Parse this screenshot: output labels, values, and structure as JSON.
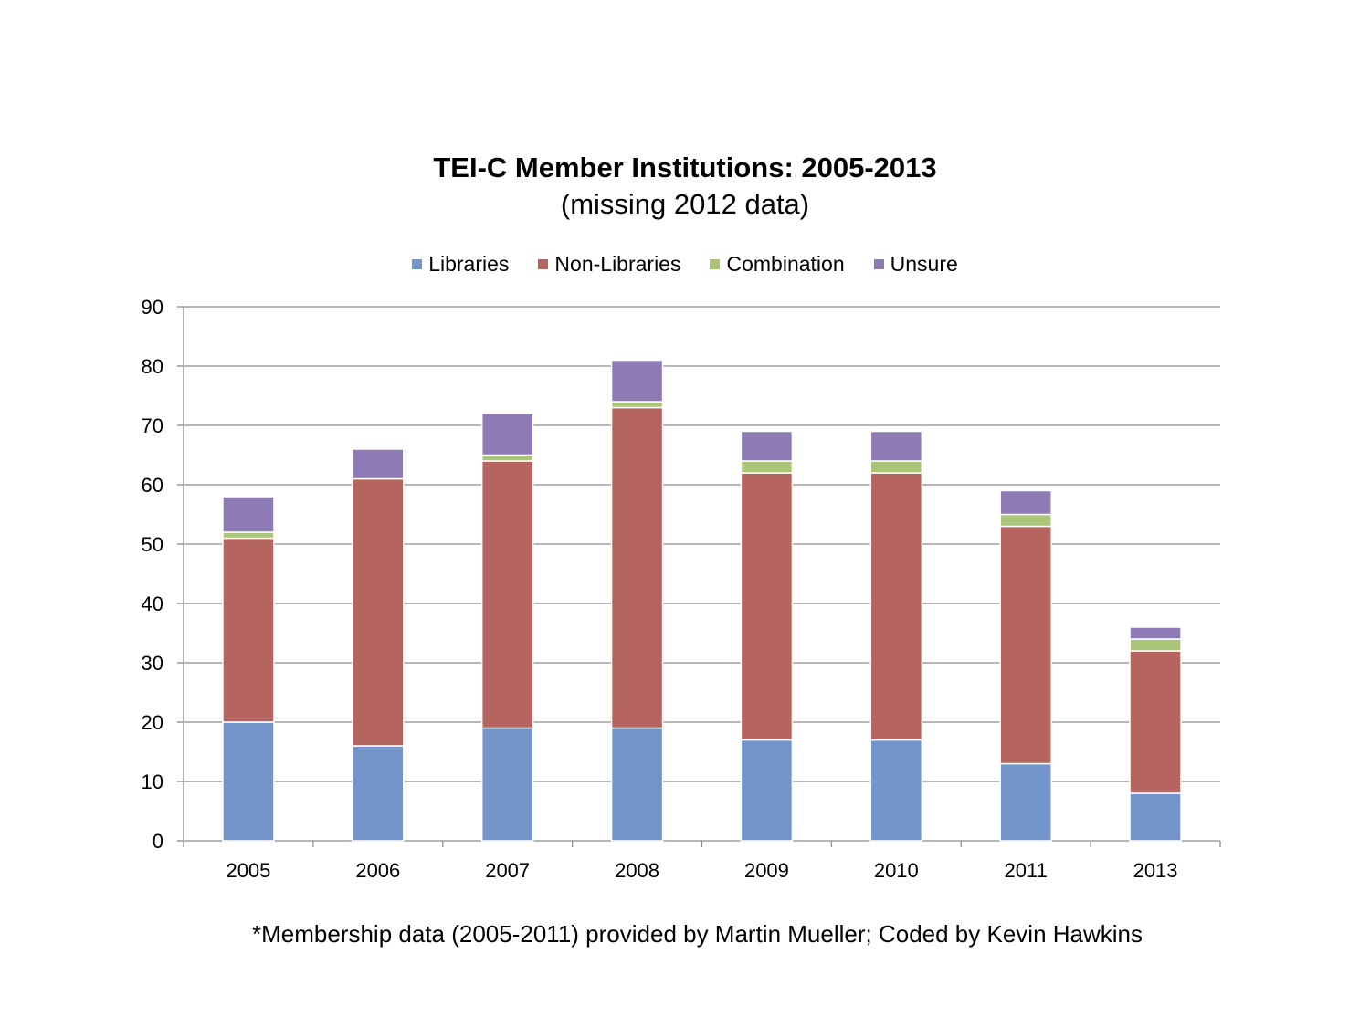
{
  "chart_data": {
    "type": "bar",
    "stacked": true,
    "title": "TEI-C Member Institutions: 2005-2013",
    "subtitle": "(missing 2012 data)",
    "categories": [
      "2005",
      "2006",
      "2007",
      "2008",
      "2009",
      "2010",
      "2011",
      "2013"
    ],
    "series": [
      {
        "name": "Libraries",
        "color": "#7395C9",
        "values": [
          20,
          16,
          19,
          19,
          17,
          17,
          13,
          8
        ]
      },
      {
        "name": "Non-Libraries",
        "color": "#B5645F",
        "values": [
          31,
          45,
          45,
          54,
          45,
          45,
          40,
          24
        ]
      },
      {
        "name": "Combination",
        "color": "#AAC478",
        "values": [
          1,
          0,
          1,
          1,
          2,
          2,
          2,
          2
        ]
      },
      {
        "name": "Unsure",
        "color": "#8E7AB5",
        "values": [
          6,
          5,
          7,
          7,
          5,
          5,
          4,
          2
        ]
      }
    ],
    "ylim": [
      0,
      90
    ],
    "yticks": [
      "0",
      "10",
      "20",
      "30",
      "40",
      "50",
      "60",
      "70",
      "80",
      "90"
    ],
    "grid": true,
    "legend_position": "top"
  },
  "footnote": "*Membership data (2005-2011) provided by Martin Mueller; Coded by Kevin Hawkins"
}
